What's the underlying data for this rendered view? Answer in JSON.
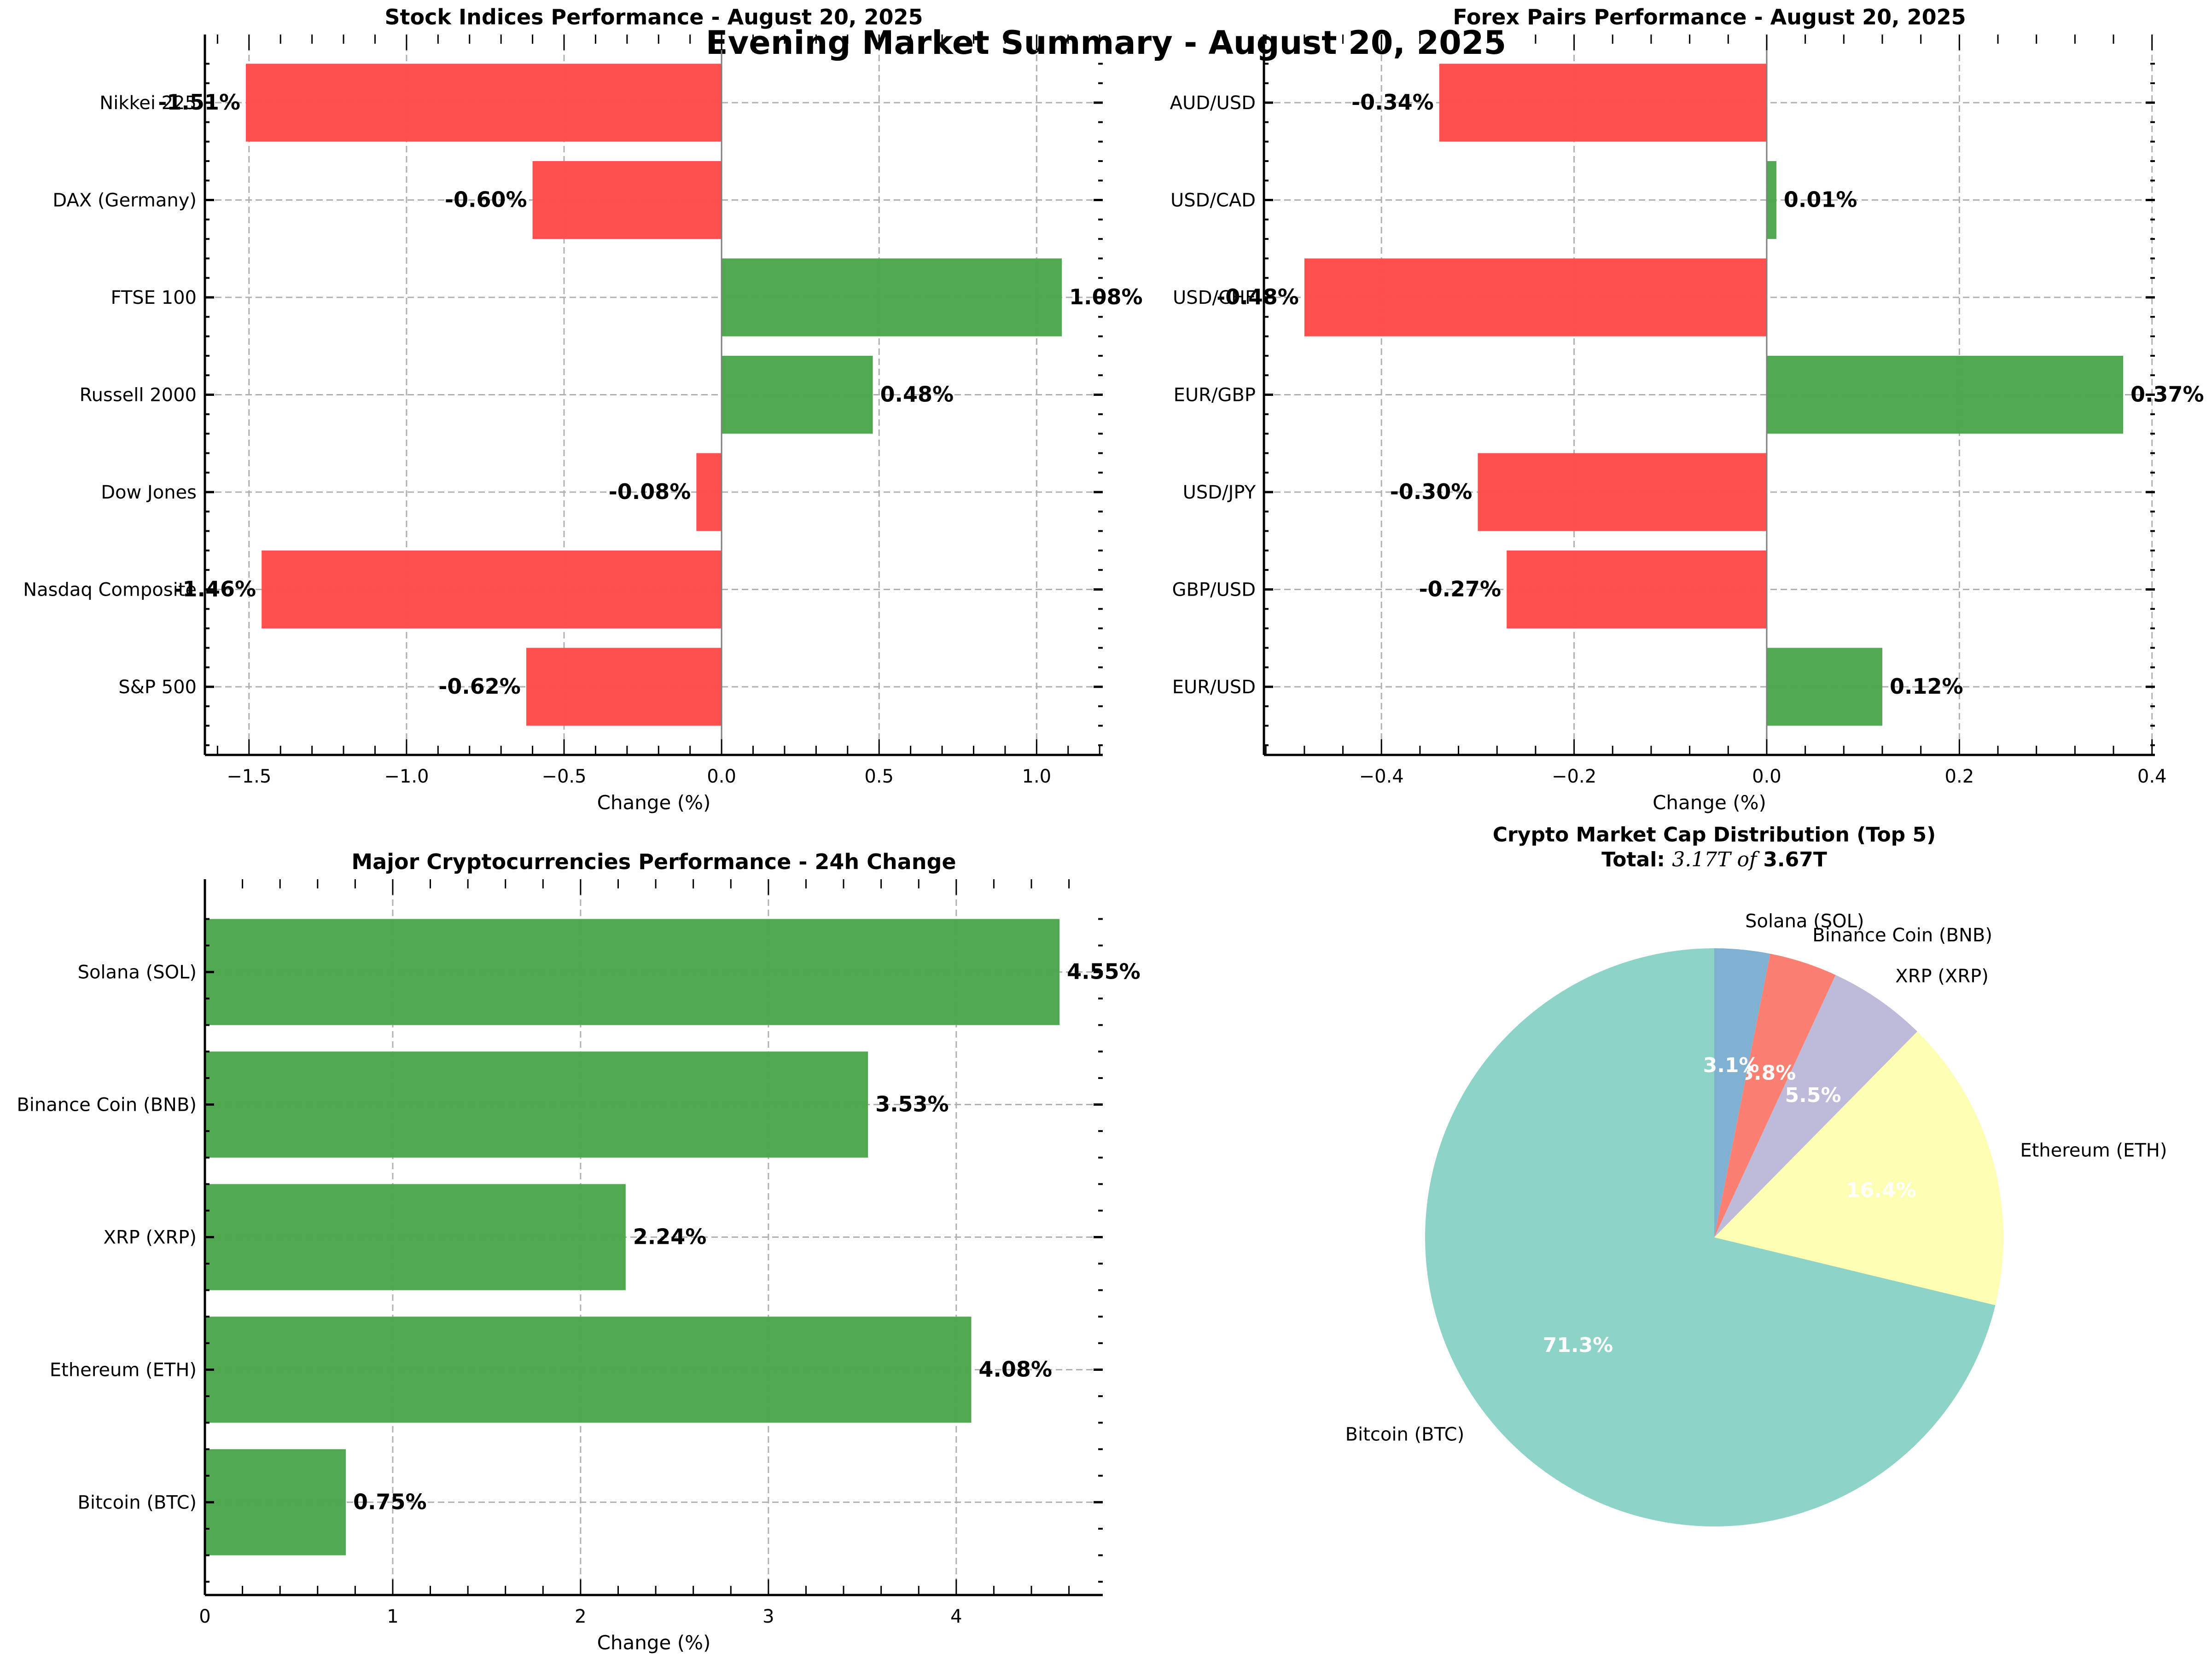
{
  "suptitle": "Evening Market Summary - August 20, 2025",
  "colors": {
    "positive": "#4ca64c",
    "negative": "#ff4d4d",
    "grid": "#b0b0b0",
    "pie": [
      "#8dd3c7",
      "#ffffb3",
      "#bebada",
      "#fb8072",
      "#80b1d3"
    ]
  },
  "chart_data": [
    {
      "id": "stocks",
      "type": "bar",
      "orientation": "horizontal",
      "title": "Stock Indices Performance - August 20, 2025",
      "xlabel": "Change (%)",
      "ylabel": "",
      "categories": [
        "S&P 500",
        "Nasdaq Composite",
        "Dow Jones",
        "Russell 2000",
        "FTSE 100",
        "DAX (Germany)",
        "Nikkei 225"
      ],
      "values": [
        -0.62,
        -1.46,
        -0.08,
        0.48,
        1.08,
        -0.6,
        -1.51
      ],
      "value_labels": [
        "-0.62%",
        "-1.46%",
        "-0.08%",
        "0.48%",
        "1.08%",
        "-0.60%",
        "-1.51%"
      ],
      "xlim": [
        -1.64,
        1.21
      ],
      "xticks": [
        -1.5,
        -1.0,
        -0.5,
        0.0,
        0.5,
        1.0
      ],
      "xtick_labels": [
        "−1.5",
        "−1.0",
        "−0.5",
        "0.0",
        "0.5",
        "1.0"
      ],
      "grid": true
    },
    {
      "id": "forex",
      "type": "bar",
      "orientation": "horizontal",
      "title": "Forex Pairs Performance - August 20, 2025",
      "xlabel": "Change (%)",
      "ylabel": "",
      "categories": [
        "EUR/USD",
        "GBP/USD",
        "USD/JPY",
        "EUR/GBP",
        "USD/CHF",
        "USD/CAD",
        "AUD/USD"
      ],
      "values": [
        0.12,
        -0.27,
        -0.3,
        0.37,
        -0.48,
        0.01,
        -0.34
      ],
      "value_labels": [
        "0.12%",
        "-0.27%",
        "-0.30%",
        "0.37%",
        "-0.48%",
        "0.01%",
        "-0.34%"
      ],
      "xlim": [
        -0.522,
        0.403
      ],
      "xticks": [
        -0.4,
        -0.2,
        0.0,
        0.2,
        0.4
      ],
      "xtick_labels": [
        "−0.4",
        "−0.2",
        "0.0",
        "0.2",
        "0.4"
      ],
      "grid": true
    },
    {
      "id": "crypto",
      "type": "bar",
      "orientation": "horizontal",
      "title": "Major Cryptocurrencies Performance - 24h Change",
      "xlabel": "Change (%)",
      "ylabel": "",
      "categories": [
        "Bitcoin (BTC)",
        "Ethereum (ETH)",
        "XRP (XRP)",
        "Binance Coin (BNB)",
        "Solana (SOL)"
      ],
      "values": [
        0.75,
        4.08,
        2.24,
        3.53,
        4.55
      ],
      "value_labels": [
        "0.75%",
        "4.08%",
        "2.24%",
        "3.53%",
        "4.55%"
      ],
      "xlim": [
        0,
        4.78
      ],
      "xticks": [
        0,
        1,
        2,
        3,
        4
      ],
      "xtick_labels": [
        "0",
        "1",
        "2",
        "3",
        "4"
      ],
      "grid": true
    },
    {
      "id": "crypto-pie",
      "type": "pie",
      "title": "Crypto Market Cap Distribution (Top 5)",
      "subtitle_prefix": "Total: ",
      "subtitle_math": "3.17T of ",
      "subtitle_suffix": "3.67T",
      "labels": [
        "Bitcoin (BTC)",
        "Ethereum (ETH)",
        "XRP (XRP)",
        "Binance Coin (BNB)",
        "Solana (SOL)"
      ],
      "values": [
        71.3,
        16.4,
        5.5,
        3.8,
        3.1
      ],
      "pct_labels": [
        "71.3%",
        "16.4%",
        "5.5%",
        "3.8%",
        "3.1%"
      ],
      "start_angle_deg": 90,
      "direction": "counterclockwise"
    }
  ]
}
